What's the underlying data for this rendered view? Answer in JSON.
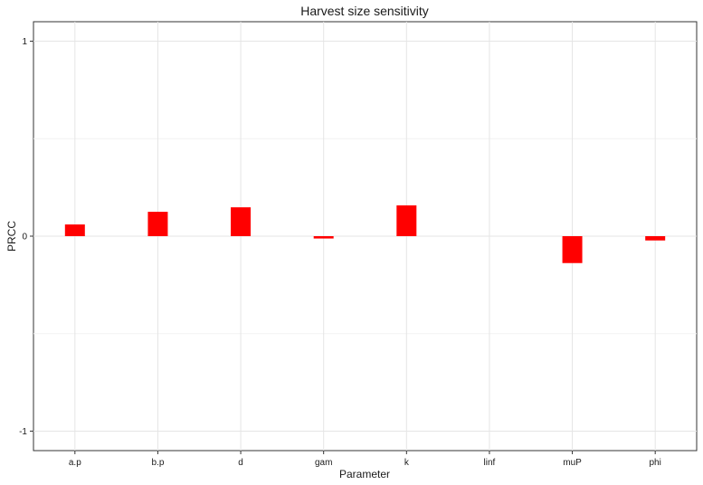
{
  "chart_data": {
    "type": "bar",
    "title": "Harvest size sensitivity",
    "xlabel": "Parameter",
    "ylabel": "PRCC",
    "categories": [
      "a.p",
      "b.p",
      "d",
      "gam",
      "k",
      "linf",
      "muP",
      "phi"
    ],
    "values": [
      0.06,
      0.125,
      0.148,
      -0.012,
      0.158,
      0.0,
      -0.138,
      -0.022
    ],
    "ylim": [
      -1.1,
      1.1
    ],
    "yticks": [
      -1,
      0,
      1
    ],
    "ytick_labels": [
      "-1",
      "0",
      "1"
    ],
    "grid": true,
    "legend": "none",
    "bar_color": "#ff0000"
  }
}
